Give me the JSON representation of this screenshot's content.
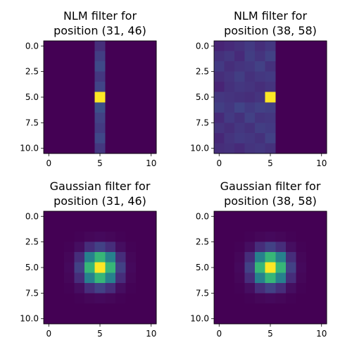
{
  "figure": {
    "background": "#ffffff",
    "colormap": "viridis"
  },
  "chart_data": [
    {
      "type": "heatmap",
      "title_lines": [
        "NLM filter for",
        "position (31, 46)"
      ],
      "x_ticks": [
        "0",
        "5",
        "10"
      ],
      "y_ticks": [
        "0.0",
        "2.5",
        "5.0",
        "7.5",
        "10.0"
      ],
      "xlim": [
        -0.5,
        10.5
      ],
      "ylim": [
        10.5,
        -0.5
      ],
      "x_tick_values": [
        0,
        5,
        10
      ],
      "y_tick_values": [
        0,
        2.5,
        5,
        7.5,
        10
      ],
      "values": [
        [
          0,
          0,
          0,
          0,
          0,
          0.13,
          0,
          0,
          0,
          0,
          0
        ],
        [
          0,
          0,
          0,
          0,
          0,
          0.18,
          0,
          0,
          0,
          0,
          0
        ],
        [
          0,
          0,
          0,
          0,
          0,
          0.22,
          0,
          0,
          0,
          0,
          0
        ],
        [
          0,
          0,
          0,
          0,
          0,
          0.16,
          0,
          0,
          0,
          0,
          0
        ],
        [
          0,
          0,
          0,
          0,
          0,
          0.2,
          0,
          0,
          0,
          0,
          0
        ],
        [
          0,
          0,
          0,
          0,
          0,
          1.0,
          0,
          0,
          0,
          0,
          0
        ],
        [
          0,
          0,
          0,
          0,
          0,
          0.24,
          0,
          0,
          0,
          0,
          0
        ],
        [
          0,
          0,
          0,
          0,
          0,
          0.19,
          0,
          0,
          0,
          0,
          0
        ],
        [
          0,
          0,
          0,
          0,
          0,
          0.17,
          0,
          0,
          0,
          0,
          0
        ],
        [
          0,
          0,
          0,
          0,
          0,
          0.21,
          0,
          0,
          0,
          0,
          0
        ],
        [
          0,
          0,
          0,
          0,
          0,
          0.16,
          0,
          0,
          0,
          0,
          0
        ]
      ]
    },
    {
      "type": "heatmap",
      "title_lines": [
        "NLM filter for",
        "position (38, 58)"
      ],
      "x_ticks": [
        "0",
        "5",
        "10"
      ],
      "y_ticks": [
        "0.0",
        "2.5",
        "5.0",
        "7.5",
        "10.0"
      ],
      "xlim": [
        -0.5,
        10.5
      ],
      "ylim": [
        10.5,
        -0.5
      ],
      "x_tick_values": [
        0,
        5,
        10
      ],
      "y_tick_values": [
        0,
        2.5,
        5,
        7.5,
        10
      ],
      "values": [
        [
          0.1,
          0.12,
          0.14,
          0.17,
          0.13,
          0.16,
          0,
          0,
          0,
          0,
          0
        ],
        [
          0.14,
          0.16,
          0.12,
          0.18,
          0.15,
          0.19,
          0,
          0,
          0,
          0,
          0
        ],
        [
          0.17,
          0.13,
          0.15,
          0.16,
          0.19,
          0.14,
          0,
          0,
          0,
          0,
          0
        ],
        [
          0.13,
          0.15,
          0.18,
          0.14,
          0.16,
          0.17,
          0,
          0,
          0,
          0,
          0
        ],
        [
          0.1,
          0.14,
          0.16,
          0.15,
          0.13,
          0.15,
          0,
          0,
          0,
          0,
          0
        ],
        [
          0.16,
          0.15,
          0.14,
          0.13,
          0.15,
          1.0,
          0,
          0,
          0,
          0,
          0
        ],
        [
          0.18,
          0.16,
          0.2,
          0.17,
          0.19,
          0.18,
          0,
          0,
          0,
          0,
          0
        ],
        [
          0.12,
          0.17,
          0.14,
          0.19,
          0.15,
          0.16,
          0,
          0,
          0,
          0,
          0
        ],
        [
          0.15,
          0.13,
          0.16,
          0.14,
          0.18,
          0.17,
          0,
          0,
          0,
          0,
          0
        ],
        [
          0.11,
          0.15,
          0.17,
          0.16,
          0.14,
          0.19,
          0,
          0,
          0,
          0,
          0
        ],
        [
          0.13,
          0.14,
          0.12,
          0.15,
          0.16,
          0.14,
          0,
          0,
          0,
          0,
          0
        ]
      ]
    },
    {
      "type": "heatmap",
      "title_lines": [
        "Gaussian filter for",
        "position (31, 46)"
      ],
      "x_ticks": [
        "0",
        "5",
        "10"
      ],
      "y_ticks": [
        "0.0",
        "2.5",
        "5.0",
        "7.5",
        "10.0"
      ],
      "xlim": [
        -0.5,
        10.5
      ],
      "ylim": [
        10.5,
        -0.5
      ],
      "x_tick_values": [
        0,
        5,
        10
      ],
      "y_tick_values": [
        0,
        2.5,
        5,
        7.5,
        10
      ],
      "gaussian_sigma": 1.1,
      "gaussian_center": [
        5,
        5
      ]
    },
    {
      "type": "heatmap",
      "title_lines": [
        "Gaussian filter for",
        "position (38, 58)"
      ],
      "x_ticks": [
        "0",
        "5",
        "10"
      ],
      "y_ticks": [
        "0.0",
        "2.5",
        "5.0",
        "7.5",
        "10.0"
      ],
      "xlim": [
        -0.5,
        10.5
      ],
      "ylim": [
        10.5,
        -0.5
      ],
      "x_tick_values": [
        0,
        5,
        10
      ],
      "y_tick_values": [
        0,
        2.5,
        5,
        7.5,
        10
      ],
      "gaussian_sigma": 1.1,
      "gaussian_center": [
        5,
        5
      ]
    }
  ]
}
